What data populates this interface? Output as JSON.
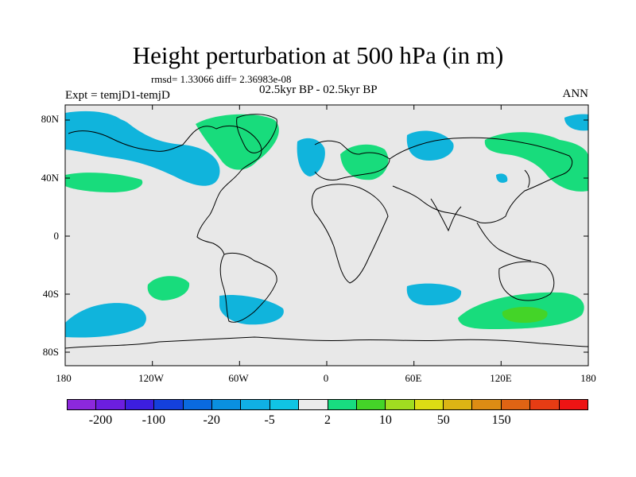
{
  "title": "Height perturbation at 500 hPa (in m)",
  "stats": "rmsd= 1.33066 diff= 2.36983e-08",
  "period": "02.5kyr BP - 02.5kyr BP",
  "experiment": "Expt = temjD1-temjD",
  "season": "ANN",
  "axes": {
    "y_ticks": [
      "80N",
      "40N",
      "0",
      "40S",
      "80S"
    ],
    "x_ticks": [
      "180",
      "120W",
      "60W",
      "0",
      "60E",
      "120E",
      "180"
    ]
  },
  "colors": {
    "ocean_background": "#e8e8e8",
    "coast": "#000000",
    "blue_anomaly": "#10b4dc",
    "green_anomaly": "#18dc7c",
    "green_strong": "#44d428"
  },
  "colorbar": {
    "colors": [
      "#8c28dc",
      "#6c1ee0",
      "#3c1ee0",
      "#1440dc",
      "#0a6ae0",
      "#0a90e0",
      "#10b0e4",
      "#10c4e4",
      "#ececec",
      "#18dc80",
      "#44d428",
      "#a0dc20",
      "#dcdc14",
      "#dcb414",
      "#dc8c14",
      "#e06414",
      "#e63c14",
      "#ee1414"
    ],
    "labels": [
      "-200",
      "-100",
      "-20",
      "-5",
      "2",
      "10",
      "50",
      "150"
    ]
  }
}
